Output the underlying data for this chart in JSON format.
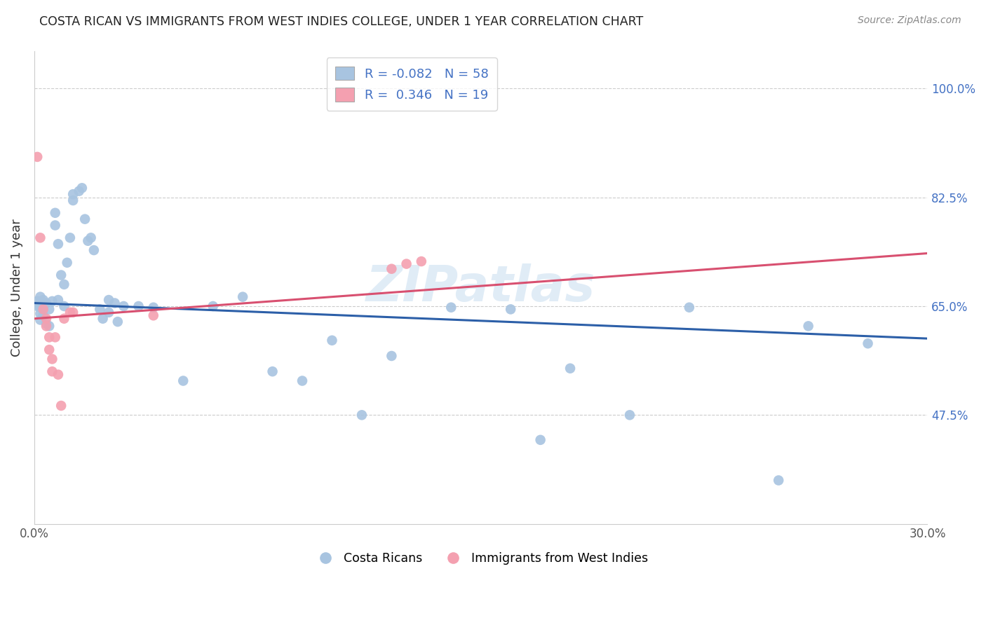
{
  "title": "COSTA RICAN VS IMMIGRANTS FROM WEST INDIES COLLEGE, UNDER 1 YEAR CORRELATION CHART",
  "source": "Source: ZipAtlas.com",
  "ylabel": "College, Under 1 year",
  "xlim": [
    0.0,
    0.3
  ],
  "ylim": [
    0.3,
    1.06
  ],
  "yticks": [
    0.475,
    0.65,
    0.825,
    1.0
  ],
  "ytick_labels": [
    "47.5%",
    "65.0%",
    "82.5%",
    "100.0%"
  ],
  "xtick_labels": [
    "0.0%",
    "",
    "",
    "",
    "",
    "",
    "30.0%"
  ],
  "xticks": [
    0.0,
    0.05,
    0.1,
    0.15,
    0.2,
    0.25,
    0.3
  ],
  "blue_R": -0.082,
  "blue_N": 58,
  "pink_R": 0.346,
  "pink_N": 19,
  "blue_scatter_color": "#a8c4e0",
  "pink_scatter_color": "#f4a0b0",
  "blue_line_color": "#2c5fa8",
  "pink_line_color": "#d85070",
  "grid_color": "#cccccc",
  "watermark_text": "ZIPatlas",
  "blue_line_x0": 0.0,
  "blue_line_y0": 0.655,
  "blue_line_x1": 0.3,
  "blue_line_y1": 0.598,
  "pink_line_x0": 0.0,
  "pink_line_y0": 0.63,
  "pink_line_x1": 0.3,
  "pink_line_y1": 0.735,
  "blue_x": [
    0.001,
    0.001,
    0.002,
    0.002,
    0.002,
    0.002,
    0.002,
    0.003,
    0.003,
    0.003,
    0.004,
    0.004,
    0.005,
    0.005,
    0.006,
    0.007,
    0.007,
    0.008,
    0.008,
    0.009,
    0.01,
    0.01,
    0.011,
    0.012,
    0.013,
    0.013,
    0.015,
    0.016,
    0.017,
    0.018,
    0.019,
    0.02,
    0.022,
    0.023,
    0.025,
    0.025,
    0.027,
    0.028,
    0.03,
    0.035,
    0.04,
    0.05,
    0.06,
    0.07,
    0.08,
    0.09,
    0.1,
    0.11,
    0.12,
    0.14,
    0.16,
    0.17,
    0.18,
    0.2,
    0.22,
    0.25,
    0.26,
    0.28
  ],
  "blue_y": [
    0.658,
    0.65,
    0.665,
    0.655,
    0.648,
    0.638,
    0.628,
    0.66,
    0.645,
    0.635,
    0.655,
    0.622,
    0.645,
    0.618,
    0.658,
    0.78,
    0.8,
    0.75,
    0.66,
    0.7,
    0.685,
    0.65,
    0.72,
    0.76,
    0.82,
    0.83,
    0.835,
    0.84,
    0.79,
    0.755,
    0.76,
    0.74,
    0.645,
    0.63,
    0.66,
    0.64,
    0.655,
    0.625,
    0.65,
    0.65,
    0.648,
    0.53,
    0.65,
    0.665,
    0.545,
    0.53,
    0.595,
    0.475,
    0.57,
    0.648,
    0.645,
    0.435,
    0.55,
    0.475,
    0.648,
    0.37,
    0.618,
    0.59
  ],
  "pink_x": [
    0.001,
    0.002,
    0.003,
    0.004,
    0.004,
    0.005,
    0.005,
    0.006,
    0.006,
    0.007,
    0.008,
    0.009,
    0.01,
    0.012,
    0.013,
    0.04,
    0.12,
    0.125,
    0.13
  ],
  "pink_y": [
    0.89,
    0.76,
    0.645,
    0.63,
    0.618,
    0.6,
    0.58,
    0.565,
    0.545,
    0.6,
    0.54,
    0.49,
    0.63,
    0.64,
    0.64,
    0.635,
    0.71,
    0.718,
    0.722
  ]
}
